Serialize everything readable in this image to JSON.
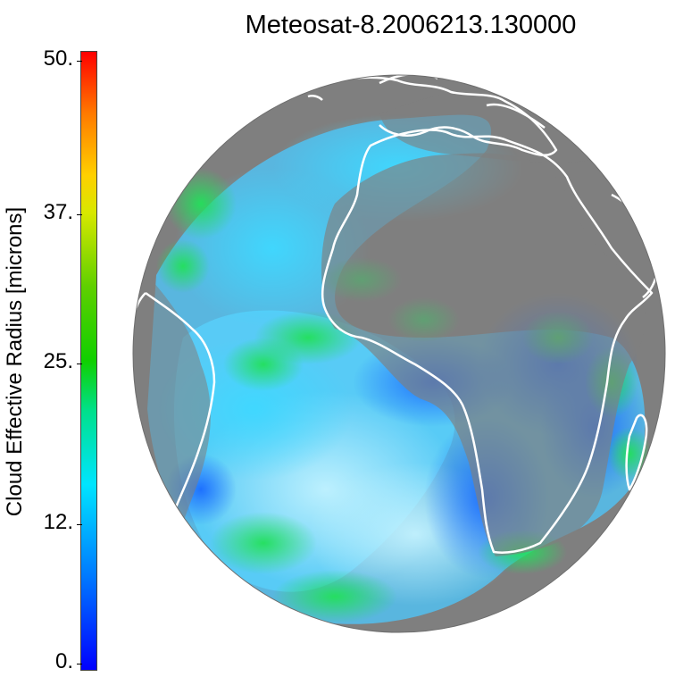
{
  "title": "Meteosat-8.2006213.130000",
  "colorbar": {
    "label": "Cloud Effective Radius [microns]",
    "ticks": [
      "50.",
      "37.",
      "25.",
      "12.",
      "0."
    ],
    "colors": [
      "#0000ff",
      "#0078ff",
      "#00e5ff",
      "#10d000",
      "#d8e800",
      "#ffd000",
      "#ff7a00",
      "#ff0000"
    ]
  },
  "map": {
    "background": "#7f7f7f",
    "coastline_color": "#ffffff"
  }
}
